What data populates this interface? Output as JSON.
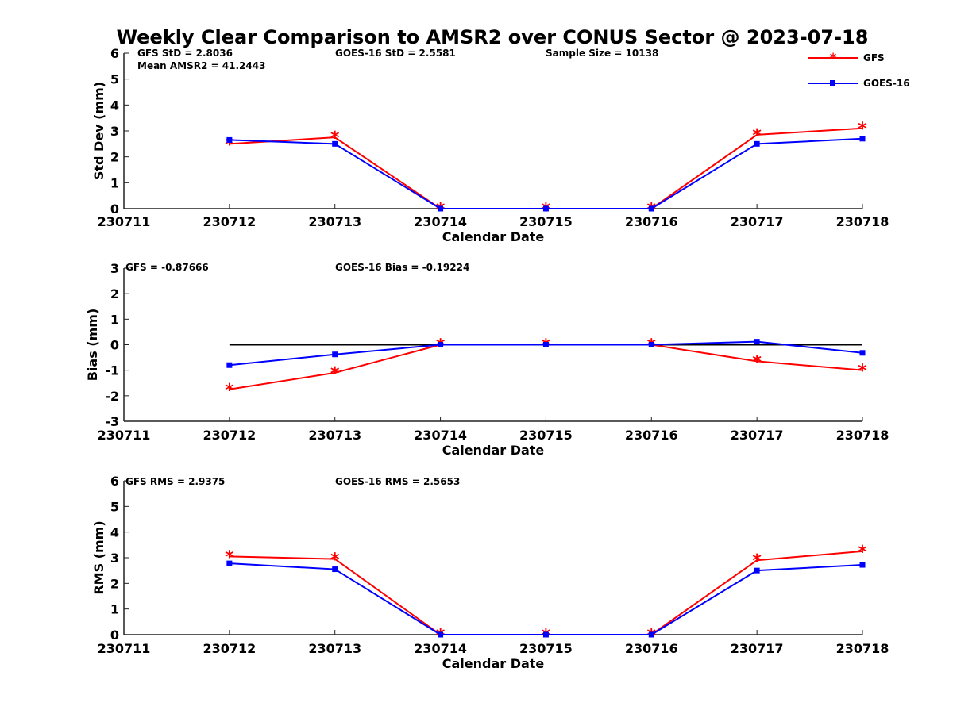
{
  "chart_data": {
    "title": "Weekly Clear Comparison to AMSR2 over CONUS Sector @ 2023-07-18",
    "colors": {
      "GFS": "#ff0000",
      "GOES-16": "#0000ff",
      "zero_line": "#000000"
    },
    "legend": {
      "position": "top-right",
      "entries": [
        {
          "name": "GFS",
          "marker": "asterisk"
        },
        {
          "name": "GOES-16",
          "marker": "square"
        }
      ]
    },
    "panels": [
      {
        "type": "line",
        "xlabel": "Calendar Date",
        "ylabel": "Std Dev (mm)",
        "x": [
          "230711",
          "230712",
          "230713",
          "230714",
          "230715",
          "230716",
          "230717",
          "230718"
        ],
        "ylim": [
          0,
          6
        ],
        "yticks": [
          0,
          1,
          2,
          3,
          4,
          5,
          6
        ],
        "zero_line": false,
        "annotations": [
          "GFS StD = 2.8036",
          "GOES-16 StD = 2.5581",
          "Sample Size = 10138",
          "Mean AMSR2 = 41.2443"
        ],
        "series": [
          {
            "name": "GFS",
            "values": [
              null,
              2.5,
              2.75,
              0,
              0,
              0,
              2.85,
              3.1
            ]
          },
          {
            "name": "GOES-16",
            "values": [
              null,
              2.65,
              2.5,
              0,
              0,
              0,
              2.5,
              2.7
            ]
          }
        ]
      },
      {
        "type": "line",
        "xlabel": "Calendar Date",
        "ylabel": "Bias (mm)",
        "x": [
          "230711",
          "230712",
          "230713",
          "230714",
          "230715",
          "230716",
          "230717",
          "230718"
        ],
        "ylim": [
          -3,
          3
        ],
        "yticks": [
          -3,
          -2,
          -1,
          0,
          1,
          2,
          3
        ],
        "zero_line": true,
        "annotations": [
          "GFS = -0.87666",
          "GOES-16 Bias  = -0.19224"
        ],
        "series": [
          {
            "name": "GFS",
            "values": [
              null,
              -1.75,
              -1.1,
              0,
              0,
              0,
              -0.65,
              -1.0
            ]
          },
          {
            "name": "GOES-16",
            "values": [
              null,
              -0.8,
              -0.38,
              0,
              0,
              0,
              0.12,
              -0.32
            ]
          }
        ]
      },
      {
        "type": "line",
        "xlabel": "Calendar Date",
        "ylabel": "RMS (mm)",
        "x": [
          "230711",
          "230712",
          "230713",
          "230714",
          "230715",
          "230716",
          "230717",
          "230718"
        ],
        "ylim": [
          0,
          6
        ],
        "yticks": [
          0,
          1,
          2,
          3,
          4,
          5,
          6
        ],
        "zero_line": false,
        "annotations": [
          "GFS RMS = 2.9375",
          "GOES-16 RMS = 2.5653"
        ],
        "series": [
          {
            "name": "GFS",
            "values": [
              null,
              3.05,
              2.95,
              0,
              0,
              0,
              2.9,
              3.25
            ]
          },
          {
            "name": "GOES-16",
            "values": [
              null,
              2.78,
              2.55,
              0,
              0,
              0,
              2.5,
              2.72
            ]
          }
        ]
      }
    ]
  }
}
